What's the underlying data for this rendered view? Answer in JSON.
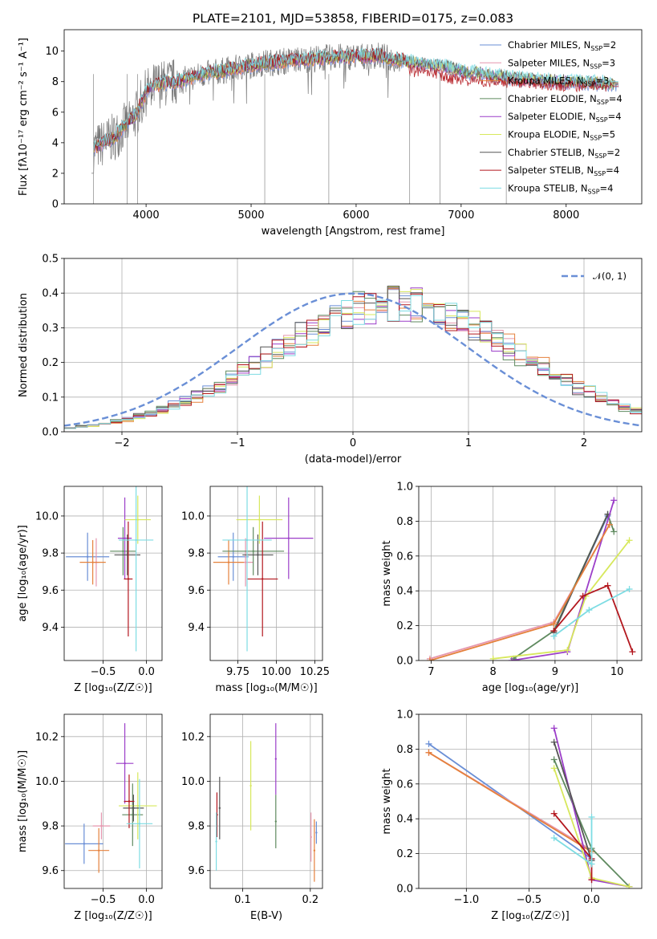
{
  "colors": {
    "Chabrier MILES": "#6a8fd6",
    "Salpeter MILES": "#e596ae",
    "Kroupa MILES": "#e5813c",
    "Chabrier ELODIE": "#5f8a5f",
    "Salpeter ELODIE": "#9c3fc9",
    "Kroupa ELODIE": "#d7e85c",
    "Chabrier STELIB": "#555555",
    "Salpeter STELIB": "#b3171e",
    "Kroupa STELIB": "#7ddce3"
  },
  "chart_data": [
    {
      "id": "spectrum",
      "type": "line",
      "title": "PLATE=2101, MJD=53858, FIBERID=0175, z=0.083",
      "xlabel": "wavelength [Angstrom, rest frame]",
      "ylabel": "Flux [fλ10⁻¹⁷ erg cm⁻² s⁻¹ A⁻¹]",
      "xlim": [
        3220,
        8720
      ],
      "ylim": [
        0,
        11.4
      ],
      "xticks": [
        4000,
        5000,
        6000,
        7000,
        8000
      ],
      "yticks": [
        0,
        2,
        4,
        6,
        8,
        10
      ],
      "legend_position": "top-right",
      "series": [
        {
          "name": "Chabrier MILES, N_SSP=2",
          "label": "Chabrier MILES, N",
          "nssp": "=2"
        },
        {
          "name": "Salpeter MILES, N_SSP=3",
          "label": "Salpeter MILES, N",
          "nssp": "=3"
        },
        {
          "name": "Kroupa MILES, N_SSP=3",
          "label": "Kroupa MILES, N",
          "nssp": "=3"
        },
        {
          "name": "Chabrier ELODIE, N_SSP=4",
          "label": "Chabrier ELODIE, N",
          "nssp": "=4"
        },
        {
          "name": "Salpeter ELODIE, N_SSP=4",
          "label": "Salpeter ELODIE, N",
          "nssp": "=4"
        },
        {
          "name": "Kroupa ELODIE, N_SSP=5",
          "label": "Kroupa ELODIE, N",
          "nssp": "=5"
        },
        {
          "name": "Chabrier STELIB, N_SSP=2",
          "label": "Chabrier STELIB, N",
          "nssp": "=2"
        },
        {
          "name": "Salpeter STELIB, N_SSP=4",
          "label": "Salpeter STELIB, N",
          "nssp": "=4"
        },
        {
          "name": "Kroupa STELIB, N_SSP=4",
          "label": "Kroupa STELIB, N",
          "nssp": "=4"
        }
      ],
      "continuum": {
        "wavelength": [
          3500,
          3700,
          3900,
          4000,
          4100,
          4300,
          4500,
          4800,
          5100,
          5400,
          5800,
          6200,
          6500,
          6800,
          7100,
          7400,
          7700,
          8000,
          8300,
          8500
        ],
        "flux": [
          3.6,
          4.4,
          5.8,
          7.3,
          7.8,
          8.0,
          8.4,
          8.8,
          9.2,
          9.4,
          9.6,
          9.7,
          9.3,
          9.0,
          8.6,
          8.3,
          8.1,
          8.0,
          7.9,
          7.9
        ]
      },
      "stelib_red": {
        "wavelength": [
          6500,
          6700,
          6900,
          7100,
          7300,
          7500,
          7800,
          8100,
          8400
        ],
        "flux": [
          8.6,
          8.5,
          8.1,
          7.9,
          7.8,
          7.9,
          7.7,
          7.6,
          7.6
        ]
      }
    },
    {
      "id": "residuals",
      "type": "histogram",
      "xlabel": "(data-model)/error",
      "ylabel": "Normed distribution",
      "xlim": [
        -2.5,
        2.5
      ],
      "ylim": [
        0,
        0.5
      ],
      "xticks": [
        -2,
        -1,
        0,
        1,
        2
      ],
      "yticks": [
        0.0,
        0.1,
        0.2,
        0.3,
        0.4,
        0.5
      ],
      "legend_label": "𝒩(0, 1)",
      "legend_position": "top-right",
      "gaussian": {
        "mean": 0,
        "sigma": 1
      }
    },
    {
      "id": "age-vs-Z",
      "type": "scatter",
      "xlabel": "Z [log₁₀(Z/Z☉)]",
      "ylabel": "age  [log₁₀(age/yr)]",
      "xlim": [
        -0.95,
        0.18
      ],
      "ylim": [
        9.22,
        10.16
      ],
      "xticks": [
        -0.5,
        0.0
      ],
      "yticks": [
        9.4,
        9.6,
        9.8,
        10.0
      ],
      "points": [
        {
          "model": "Chabrier MILES",
          "x": -0.68,
          "y": 9.78,
          "xerr": 0.25,
          "yerr": 0.13
        },
        {
          "model": "Salpeter MILES",
          "x": -0.58,
          "y": 9.75,
          "xerr": 0.03,
          "yerr": 0.13
        },
        {
          "model": "Kroupa MILES",
          "x": -0.62,
          "y": 9.75,
          "xerr": 0.15,
          "yerr": 0.12
        },
        {
          "model": "Chabrier ELODIE",
          "x": -0.27,
          "y": 9.81,
          "xerr": 0.15,
          "yerr": 0.13
        },
        {
          "model": "Salpeter ELODIE",
          "x": -0.25,
          "y": 9.88,
          "xerr": 0.08,
          "yerr": 0.22
        },
        {
          "model": "Kroupa ELODIE",
          "x": -0.1,
          "y": 9.98,
          "xerr": 0.15,
          "yerr": 0.13
        },
        {
          "model": "Chabrier STELIB",
          "x": -0.22,
          "y": 9.79,
          "xerr": 0.15,
          "yerr": 0.11
        },
        {
          "model": "Salpeter STELIB",
          "x": -0.21,
          "y": 9.66,
          "xerr": 0.05,
          "yerr": 0.31
        },
        {
          "model": "Kroupa STELIB",
          "x": -0.12,
          "y": 9.87,
          "xerr": 0.2,
          "yerr": 0.6
        }
      ]
    },
    {
      "id": "age-vs-mass",
      "type": "scatter",
      "xlabel": "mass [log₁₀(M/M☉)]",
      "ylabel": "",
      "xlim": [
        9.57,
        10.3
      ],
      "ylim": [
        9.22,
        10.16
      ],
      "xticks": [
        9.75,
        10.0,
        10.25
      ],
      "xticklabels": [
        "9.75",
        "10.00",
        "10.25"
      ],
      "yticks": [
        9.4,
        9.6,
        9.8,
        10.0
      ],
      "points": [
        {
          "model": "Chabrier MILES",
          "x": 9.72,
          "y": 9.78,
          "xerr": 0.1,
          "yerr": 0.13
        },
        {
          "model": "Salpeter MILES",
          "x": 9.8,
          "y": 9.75,
          "xerr": 0.05,
          "yerr": 0.13
        },
        {
          "model": "Kroupa MILES",
          "x": 9.69,
          "y": 9.75,
          "xerr": 0.1,
          "yerr": 0.12
        },
        {
          "model": "Chabrier ELODIE",
          "x": 9.85,
          "y": 9.81,
          "xerr": 0.2,
          "yerr": 0.13
        },
        {
          "model": "Salpeter ELODIE",
          "x": 10.08,
          "y": 9.88,
          "xerr": 0.16,
          "yerr": 0.22
        },
        {
          "model": "Kroupa ELODIE",
          "x": 9.89,
          "y": 9.98,
          "xerr": 0.15,
          "yerr": 0.13
        },
        {
          "model": "Chabrier STELIB",
          "x": 9.88,
          "y": 9.79,
          "xerr": 0.1,
          "yerr": 0.11
        },
        {
          "model": "Salpeter STELIB",
          "x": 9.91,
          "y": 9.66,
          "xerr": 0.1,
          "yerr": 0.31
        },
        {
          "model": "Kroupa STELIB",
          "x": 9.81,
          "y": 9.87,
          "xerr": 0.16,
          "yerr": 0.6
        }
      ]
    },
    {
      "id": "mass-weight-vs-age",
      "type": "line",
      "xlabel": "age  [log₁₀(age/yr)]",
      "ylabel": "mass weight",
      "xlim": [
        6.8,
        10.4
      ],
      "ylim": [
        0,
        1.0
      ],
      "xticks": [
        7,
        8,
        9,
        10
      ],
      "yticks": [
        0.0,
        0.2,
        0.4,
        0.6,
        0.8,
        1.0
      ],
      "series": [
        {
          "model": "Chabrier MILES",
          "x": [
            8.98,
            9.85
          ],
          "y": [
            0.17,
            0.83
          ]
        },
        {
          "model": "Salpeter MILES",
          "x": [
            6.98,
            8.98,
            9.88
          ],
          "y": [
            0.01,
            0.22,
            0.78
          ]
        },
        {
          "model": "Chabrier ELODIE",
          "x": [
            8.33,
            8.98,
            9.85,
            9.95
          ],
          "y": [
            0.01,
            0.17,
            0.84,
            0.74
          ]
        },
        {
          "model": "Chabrier STELIB",
          "x": [
            8.98,
            9.85
          ],
          "y": [
            0.16,
            0.84
          ]
        },
        {
          "model": "Salpeter ELODIE",
          "x": [
            8.3,
            9.2,
            9.95
          ],
          "y": [
            0.0,
            0.05,
            0.92
          ]
        },
        {
          "model": "Kroupa ELODIE",
          "x": [
            8.0,
            9.2,
            9.5,
            10.2
          ],
          "y": [
            0.01,
            0.06,
            0.37,
            0.69
          ]
        },
        {
          "model": "Salpeter STELIB",
          "x": [
            8.98,
            9.45,
            9.85,
            10.25
          ],
          "y": [
            0.17,
            0.37,
            0.43,
            0.05
          ]
        },
        {
          "model": "Kroupa STELIB",
          "x": [
            8.98,
            9.55,
            10.2
          ],
          "y": [
            0.14,
            0.29,
            0.41
          ]
        },
        {
          "model": "Kroupa MILES",
          "x": [
            6.98,
            8.98,
            9.88
          ],
          "y": [
            0.0,
            0.21,
            0.78
          ]
        }
      ]
    },
    {
      "id": "mass-vs-Z",
      "type": "scatter",
      "xlabel": "Z [log₁₀(Z/Z☉)]",
      "ylabel": "mass [log₁₀(M/M☉)]",
      "xlim": [
        -0.95,
        0.18
      ],
      "ylim": [
        9.52,
        10.3
      ],
      "xticks": [
        -0.5,
        0.0
      ],
      "yticks": [
        9.6,
        9.8,
        10.0,
        10.2
      ],
      "points": [
        {
          "model": "Chabrier MILES",
          "x": -0.72,
          "y": 9.72,
          "xerr": 0.22,
          "yerr": 0.09
        },
        {
          "model": "Salpeter MILES",
          "x": -0.52,
          "y": 9.8,
          "xerr": 0.1,
          "yerr": 0.06
        },
        {
          "model": "Kroupa MILES",
          "x": -0.55,
          "y": 9.69,
          "xerr": 0.12,
          "yerr": 0.1
        },
        {
          "model": "Chabrier ELODIE",
          "x": -0.16,
          "y": 9.85,
          "xerr": 0.12,
          "yerr": 0.14
        },
        {
          "model": "Salpeter ELODIE",
          "x": -0.25,
          "y": 10.08,
          "xerr": 0.1,
          "yerr": 0.18
        },
        {
          "model": "Kroupa ELODIE",
          "x": -0.1,
          "y": 9.89,
          "xerr": 0.22,
          "yerr": 0.15
        },
        {
          "model": "Chabrier STELIB",
          "x": -0.15,
          "y": 9.88,
          "xerr": 0.12,
          "yerr": 0.06
        },
        {
          "model": "Salpeter STELIB",
          "x": -0.2,
          "y": 9.91,
          "xerr": 0.06,
          "yerr": 0.12
        },
        {
          "model": "Kroupa STELIB",
          "x": -0.08,
          "y": 9.81,
          "xerr": 0.15,
          "yerr": 0.2
        }
      ]
    },
    {
      "id": "mass-vs-EBV",
      "type": "scatter",
      "xlabel": "E(B-V)",
      "ylabel": "",
      "xlim": [
        0.052,
        0.218
      ],
      "ylim": [
        9.52,
        10.3
      ],
      "xticks": [
        0.1,
        0.2
      ],
      "yticks": [
        9.6,
        9.8,
        10.0,
        10.2
      ],
      "points": [
        {
          "model": "Chabrier MILES",
          "x": 0.209,
          "y": 9.77,
          "xerr": 0,
          "yerr": 0.05
        },
        {
          "model": "Salpeter MILES",
          "x": 0.201,
          "y": 9.75,
          "xerr": 0,
          "yerr": 0.11
        },
        {
          "model": "Kroupa MILES",
          "x": 0.206,
          "y": 9.69,
          "xerr": 0,
          "yerr": 0.14
        },
        {
          "model": "Chabrier ELODIE",
          "x": 0.149,
          "y": 9.82,
          "xerr": 0,
          "yerr": 0.12
        },
        {
          "model": "Salpeter ELODIE",
          "x": 0.149,
          "y": 10.1,
          "xerr": 0,
          "yerr": 0.16
        },
        {
          "model": "Kroupa ELODIE",
          "x": 0.112,
          "y": 9.98,
          "xerr": 0,
          "yerr": 0.2
        },
        {
          "model": "Chabrier STELIB",
          "x": 0.066,
          "y": 9.88,
          "xerr": 0,
          "yerr": 0.14
        },
        {
          "model": "Salpeter STELIB",
          "x": 0.062,
          "y": 9.85,
          "xerr": 0,
          "yerr": 0.1
        },
        {
          "model": "Kroupa STELIB",
          "x": 0.061,
          "y": 9.73,
          "xerr": 0,
          "yerr": 0.13
        }
      ]
    },
    {
      "id": "mass-weight-vs-Z",
      "type": "line",
      "xlabel": "Z [log₁₀(Z/Z☉)]",
      "ylabel": "mass weight",
      "xlim": [
        -1.38,
        0.4
      ],
      "ylim": [
        0,
        1.0
      ],
      "xticks": [
        -1.0,
        -0.5,
        0.0
      ],
      "yticks": [
        0.0,
        0.2,
        0.4,
        0.6,
        0.8,
        1.0
      ],
      "series": [
        {
          "model": "Chabrier MILES",
          "x": [
            -1.3,
            0.0
          ],
          "y": [
            0.83,
            0.17
          ]
        },
        {
          "model": "Salpeter MILES",
          "x": [
            -1.3,
            0.0
          ],
          "y": [
            0.78,
            0.22
          ]
        },
        {
          "model": "Kroupa MILES",
          "x": [
            -1.3,
            0.0
          ],
          "y": [
            0.78,
            0.21
          ]
        },
        {
          "model": "Chabrier ELODIE",
          "x": [
            -0.3,
            0.0,
            0.3
          ],
          "y": [
            0.74,
            0.23,
            0.01
          ]
        },
        {
          "model": "Salpeter ELODIE",
          "x": [
            -0.3,
            0.0,
            0.3
          ],
          "y": [
            0.92,
            0.05,
            0.01
          ]
        },
        {
          "model": "Kroupa ELODIE",
          "x": [
            -0.3,
            0.0,
            0.3
          ],
          "y": [
            0.69,
            0.06,
            0.01
          ]
        },
        {
          "model": "Chabrier STELIB",
          "x": [
            -0.3,
            0.0
          ],
          "y": [
            0.84,
            0.16
          ]
        },
        {
          "model": "Salpeter STELIB",
          "x": [
            -0.3,
            0.0,
            0.0
          ],
          "y": [
            0.43,
            0.17,
            0.05
          ]
        },
        {
          "model": "Kroupa STELIB",
          "x": [
            -0.3,
            0.0,
            0.0
          ],
          "y": [
            0.29,
            0.14,
            0.41
          ]
        }
      ]
    }
  ]
}
